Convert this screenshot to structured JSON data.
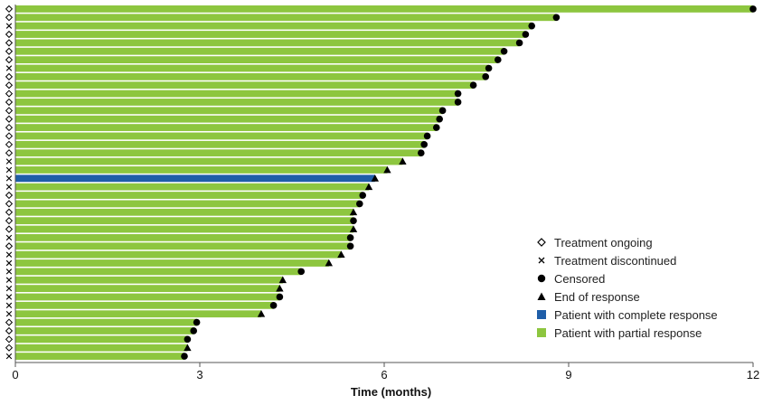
{
  "chart_data": {
    "type": "swimmer",
    "xlabel": "Time (months)",
    "xlim": [
      0,
      12
    ],
    "xticks": [
      0,
      3,
      6,
      9,
      12
    ],
    "colors": {
      "partial": "#8dc63f",
      "complete": "#1f5ea8",
      "marker": "#000000",
      "axis": "#555555"
    },
    "legend": [
      {
        "symbol": "ongoing",
        "label": "Treatment ongoing"
      },
      {
        "symbol": "discontinued",
        "label": "Treatment discontinued"
      },
      {
        "symbol": "censored",
        "label": "Censored"
      },
      {
        "symbol": "end",
        "label": "End of response"
      },
      {
        "symbol": "complete",
        "label": "Patient with complete response"
      },
      {
        "symbol": "partial",
        "label": "Patient with partial response"
      }
    ],
    "patients": [
      {
        "duration": 12.0,
        "response": "partial",
        "status": "ongoing",
        "event": "censored"
      },
      {
        "duration": 8.8,
        "response": "partial",
        "status": "ongoing",
        "event": "censored"
      },
      {
        "duration": 8.4,
        "response": "partial",
        "status": "discontinued",
        "event": "censored"
      },
      {
        "duration": 8.3,
        "response": "partial",
        "status": "ongoing",
        "event": "censored"
      },
      {
        "duration": 8.2,
        "response": "partial",
        "status": "ongoing",
        "event": "censored"
      },
      {
        "duration": 7.95,
        "response": "partial",
        "status": "ongoing",
        "event": "censored"
      },
      {
        "duration": 7.85,
        "response": "partial",
        "status": "ongoing",
        "event": "censored"
      },
      {
        "duration": 7.7,
        "response": "partial",
        "status": "discontinued",
        "event": "censored"
      },
      {
        "duration": 7.65,
        "response": "partial",
        "status": "ongoing",
        "event": "censored"
      },
      {
        "duration": 7.45,
        "response": "partial",
        "status": "ongoing",
        "event": "censored"
      },
      {
        "duration": 7.2,
        "response": "partial",
        "status": "ongoing",
        "event": "censored"
      },
      {
        "duration": 7.2,
        "response": "partial",
        "status": "ongoing",
        "event": "censored"
      },
      {
        "duration": 6.95,
        "response": "partial",
        "status": "ongoing",
        "event": "censored"
      },
      {
        "duration": 6.9,
        "response": "partial",
        "status": "ongoing",
        "event": "censored"
      },
      {
        "duration": 6.85,
        "response": "partial",
        "status": "ongoing",
        "event": "censored"
      },
      {
        "duration": 6.7,
        "response": "partial",
        "status": "ongoing",
        "event": "censored"
      },
      {
        "duration": 6.65,
        "response": "partial",
        "status": "ongoing",
        "event": "censored"
      },
      {
        "duration": 6.6,
        "response": "partial",
        "status": "ongoing",
        "event": "censored"
      },
      {
        "duration": 6.3,
        "response": "partial",
        "status": "discontinued",
        "event": "end"
      },
      {
        "duration": 6.05,
        "response": "partial",
        "status": "discontinued",
        "event": "end"
      },
      {
        "duration": 5.85,
        "response": "complete",
        "status": "discontinued",
        "event": "end"
      },
      {
        "duration": 5.75,
        "response": "partial",
        "status": "discontinued",
        "event": "end"
      },
      {
        "duration": 5.65,
        "response": "partial",
        "status": "ongoing",
        "event": "censored"
      },
      {
        "duration": 5.6,
        "response": "partial",
        "status": "ongoing",
        "event": "censored"
      },
      {
        "duration": 5.5,
        "response": "partial",
        "status": "ongoing",
        "event": "end"
      },
      {
        "duration": 5.5,
        "response": "partial",
        "status": "ongoing",
        "event": "censored"
      },
      {
        "duration": 5.5,
        "response": "partial",
        "status": "ongoing",
        "event": "end"
      },
      {
        "duration": 5.45,
        "response": "partial",
        "status": "discontinued",
        "event": "censored"
      },
      {
        "duration": 5.45,
        "response": "partial",
        "status": "ongoing",
        "event": "censored"
      },
      {
        "duration": 5.3,
        "response": "partial",
        "status": "discontinued",
        "event": "end"
      },
      {
        "duration": 5.1,
        "response": "partial",
        "status": "discontinued",
        "event": "end"
      },
      {
        "duration": 4.65,
        "response": "partial",
        "status": "discontinued",
        "event": "censored"
      },
      {
        "duration": 4.35,
        "response": "partial",
        "status": "discontinued",
        "event": "end"
      },
      {
        "duration": 4.3,
        "response": "partial",
        "status": "discontinued",
        "event": "end"
      },
      {
        "duration": 4.3,
        "response": "partial",
        "status": "discontinued",
        "event": "censored"
      },
      {
        "duration": 4.2,
        "response": "partial",
        "status": "discontinued",
        "event": "censored"
      },
      {
        "duration": 4.0,
        "response": "partial",
        "status": "discontinued",
        "event": "end"
      },
      {
        "duration": 2.95,
        "response": "partial",
        "status": "ongoing",
        "event": "censored"
      },
      {
        "duration": 2.9,
        "response": "partial",
        "status": "ongoing",
        "event": "censored"
      },
      {
        "duration": 2.8,
        "response": "partial",
        "status": "ongoing",
        "event": "censored"
      },
      {
        "duration": 2.8,
        "response": "partial",
        "status": "ongoing",
        "event": "end"
      },
      {
        "duration": 2.75,
        "response": "partial",
        "status": "discontinued",
        "event": "censored"
      }
    ]
  }
}
